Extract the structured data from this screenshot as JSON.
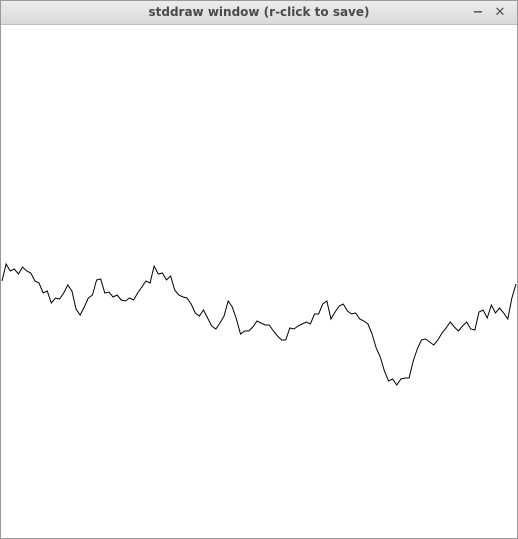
{
  "window": {
    "title": "stddraw window (r-click to save)",
    "minimize_glyph": "−",
    "close_glyph": "✕"
  },
  "drawing": {
    "stroke_color": "#000000",
    "background_color": "#ffffff",
    "path_y": [
      280,
      263,
      270,
      268,
      273,
      266,
      270,
      272,
      280,
      282,
      292,
      290,
      302,
      297,
      298,
      292,
      284,
      290,
      308,
      314,
      306,
      297,
      294,
      279,
      278,
      292,
      291,
      296,
      294,
      299,
      300,
      297,
      299,
      292,
      286,
      280,
      282,
      265,
      273,
      272,
      279,
      275,
      289,
      294,
      296,
      297,
      303,
      312,
      315,
      309,
      317,
      325,
      328,
      322,
      315,
      300,
      306,
      318,
      333,
      330,
      330,
      326,
      320,
      322,
      324,
      324,
      330,
      335,
      339,
      339,
      327,
      328,
      325,
      323,
      321,
      323,
      313,
      313,
      303,
      300,
      318,
      311,
      305,
      303,
      310,
      313,
      312,
      318,
      320,
      323,
      333,
      347,
      356,
      370,
      380,
      378,
      384,
      378,
      377,
      377,
      360,
      348,
      339,
      338,
      341,
      344,
      339,
      332,
      327,
      321,
      326,
      330,
      325,
      321,
      328,
      329,
      311,
      309,
      317,
      304,
      312,
      307,
      312,
      318,
      297,
      283
    ]
  }
}
